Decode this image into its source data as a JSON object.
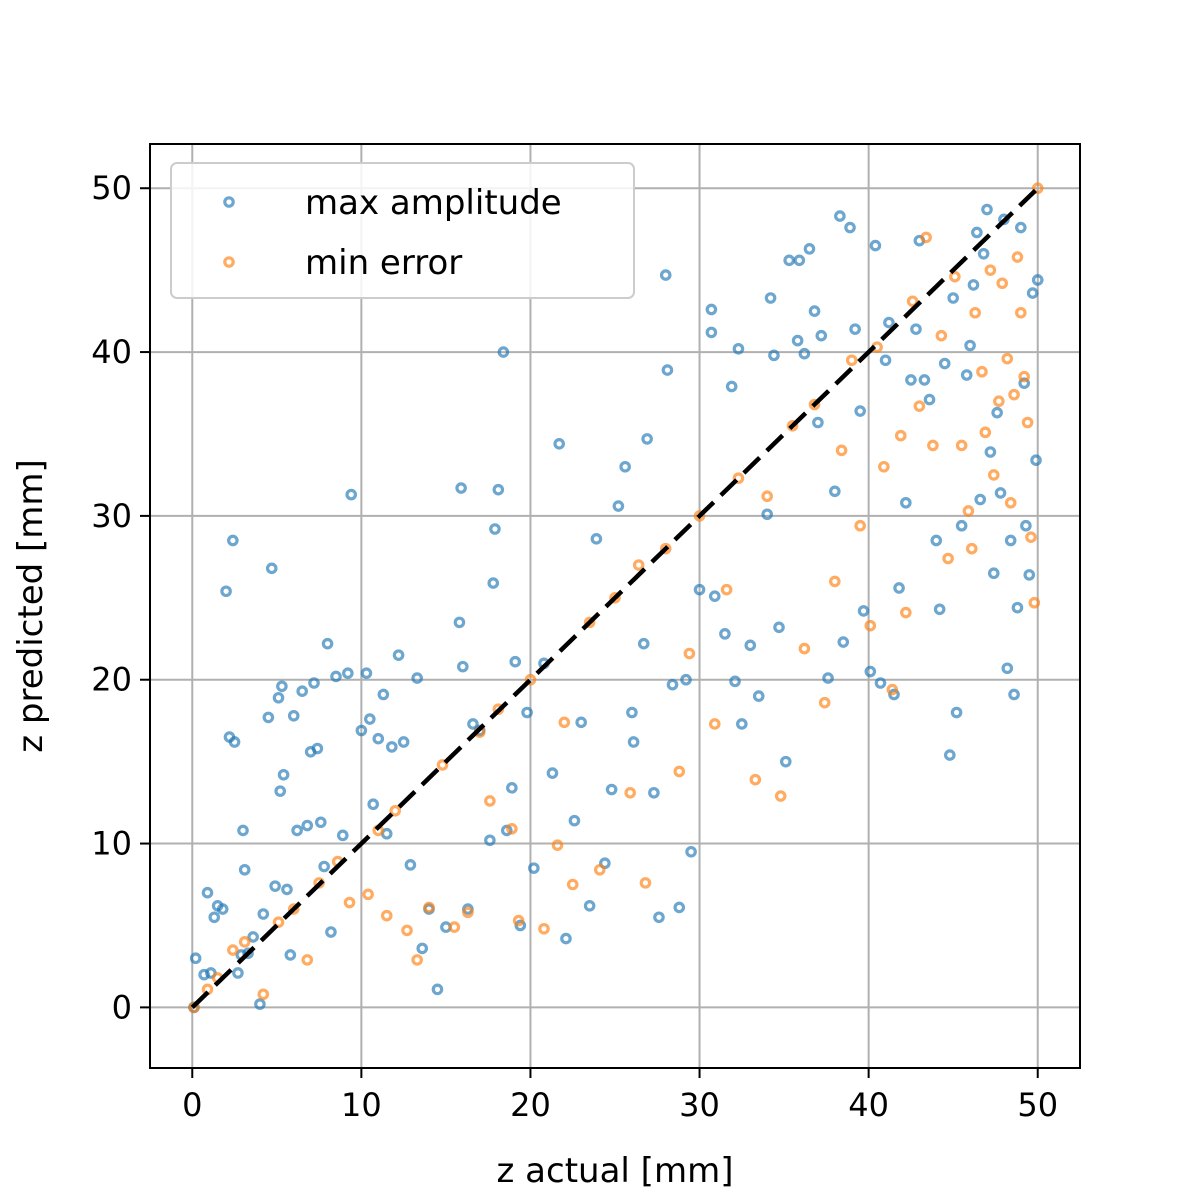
{
  "chart_data": {
    "type": "scatter",
    "xlabel": "z actual [mm]",
    "ylabel": "z predicted [mm]",
    "xlim": [
      -2.5,
      52.5
    ],
    "ylim": [
      -3.7,
      52.7
    ],
    "xticks": [
      0,
      10,
      20,
      30,
      40,
      50
    ],
    "yticks": [
      0,
      10,
      20,
      30,
      40,
      50
    ],
    "grid": true,
    "legend_position": "top-left",
    "reference_line": {
      "x": [
        0,
        50
      ],
      "y": [
        0,
        50
      ],
      "style": "dashed",
      "color": "#000000"
    },
    "series": [
      {
        "name": "max amplitude",
        "color": "#1f77b4",
        "points": [
          [
            0.1,
            0.0
          ],
          [
            0.2,
            3.0
          ],
          [
            0.7,
            2.0
          ],
          [
            0.9,
            7.0
          ],
          [
            1.1,
            2.1
          ],
          [
            1.3,
            5.5
          ],
          [
            1.5,
            6.2
          ],
          [
            1.8,
            6.0
          ],
          [
            2.0,
            25.4
          ],
          [
            2.2,
            16.5
          ],
          [
            2.4,
            28.5
          ],
          [
            2.5,
            16.2
          ],
          [
            2.7,
            2.1
          ],
          [
            2.9,
            3.2
          ],
          [
            3.0,
            10.8
          ],
          [
            3.1,
            8.4
          ],
          [
            3.3,
            3.3
          ],
          [
            3.6,
            4.3
          ],
          [
            4.0,
            0.2
          ],
          [
            4.2,
            5.7
          ],
          [
            4.5,
            17.7
          ],
          [
            4.7,
            26.8
          ],
          [
            4.9,
            7.4
          ],
          [
            5.1,
            18.9
          ],
          [
            5.2,
            13.2
          ],
          [
            5.3,
            19.6
          ],
          [
            5.4,
            14.2
          ],
          [
            5.6,
            7.2
          ],
          [
            5.8,
            3.2
          ],
          [
            6.0,
            17.8
          ],
          [
            6.2,
            10.8
          ],
          [
            6.5,
            19.3
          ],
          [
            6.8,
            11.1
          ],
          [
            7.0,
            15.6
          ],
          [
            7.2,
            19.8
          ],
          [
            7.4,
            15.8
          ],
          [
            7.6,
            11.3
          ],
          [
            7.8,
            8.6
          ],
          [
            8.0,
            22.2
          ],
          [
            8.2,
            4.6
          ],
          [
            8.5,
            20.2
          ],
          [
            8.9,
            10.5
          ],
          [
            9.2,
            20.4
          ],
          [
            9.4,
            31.3
          ],
          [
            10.0,
            16.9
          ],
          [
            10.3,
            20.4
          ],
          [
            10.5,
            17.6
          ],
          [
            10.7,
            12.4
          ],
          [
            11.0,
            16.4
          ],
          [
            11.3,
            19.1
          ],
          [
            11.5,
            10.6
          ],
          [
            11.8,
            15.9
          ],
          [
            12.2,
            21.5
          ],
          [
            12.5,
            16.2
          ],
          [
            12.9,
            8.7
          ],
          [
            13.3,
            20.1
          ],
          [
            13.6,
            3.6
          ],
          [
            14.0,
            6.0
          ],
          [
            14.5,
            1.1
          ],
          [
            15.0,
            4.9
          ],
          [
            15.8,
            23.5
          ],
          [
            15.9,
            31.7
          ],
          [
            16.0,
            20.8
          ],
          [
            16.3,
            6.0
          ],
          [
            16.6,
            17.3
          ],
          [
            17.0,
            16.9
          ],
          [
            17.6,
            10.2
          ],
          [
            17.8,
            25.9
          ],
          [
            17.9,
            29.2
          ],
          [
            18.1,
            31.6
          ],
          [
            18.4,
            40.0
          ],
          [
            18.6,
            10.8
          ],
          [
            18.9,
            13.4
          ],
          [
            19.1,
            21.1
          ],
          [
            19.4,
            5.0
          ],
          [
            19.8,
            18.0
          ],
          [
            20.2,
            8.5
          ],
          [
            20.8,
            21.0
          ],
          [
            21.3,
            14.3
          ],
          [
            21.7,
            34.4
          ],
          [
            22.1,
            4.2
          ],
          [
            22.6,
            11.4
          ],
          [
            23.0,
            17.4
          ],
          [
            23.5,
            6.2
          ],
          [
            23.9,
            28.6
          ],
          [
            24.4,
            8.8
          ],
          [
            24.8,
            13.3
          ],
          [
            25.2,
            30.6
          ],
          [
            25.6,
            33.0
          ],
          [
            26.0,
            18.0
          ],
          [
            26.1,
            16.2
          ],
          [
            26.7,
            22.2
          ],
          [
            26.9,
            34.7
          ],
          [
            27.3,
            13.1
          ],
          [
            27.6,
            5.5
          ],
          [
            28.0,
            44.7
          ],
          [
            28.1,
            38.9
          ],
          [
            28.4,
            19.7
          ],
          [
            28.8,
            6.1
          ],
          [
            29.2,
            20.0
          ],
          [
            29.5,
            9.5
          ],
          [
            30.0,
            25.5
          ],
          [
            30.7,
            41.2
          ],
          [
            30.7,
            42.6
          ],
          [
            30.9,
            25.1
          ],
          [
            31.5,
            22.8
          ],
          [
            31.9,
            37.9
          ],
          [
            32.1,
            19.9
          ],
          [
            32.3,
            40.2
          ],
          [
            32.5,
            17.3
          ],
          [
            33.0,
            22.1
          ],
          [
            33.5,
            19.0
          ],
          [
            34.0,
            30.1
          ],
          [
            34.2,
            43.3
          ],
          [
            34.4,
            39.8
          ],
          [
            34.7,
            23.2
          ],
          [
            35.1,
            15.0
          ],
          [
            35.3,
            45.6
          ],
          [
            35.8,
            40.7
          ],
          [
            35.9,
            45.6
          ],
          [
            36.2,
            39.9
          ],
          [
            36.5,
            46.3
          ],
          [
            36.8,
            42.5
          ],
          [
            37.0,
            35.7
          ],
          [
            37.2,
            41.0
          ],
          [
            37.6,
            20.1
          ],
          [
            38.0,
            31.5
          ],
          [
            38.3,
            48.3
          ],
          [
            38.5,
            22.3
          ],
          [
            38.9,
            47.6
          ],
          [
            39.2,
            41.4
          ],
          [
            39.5,
            36.4
          ],
          [
            39.7,
            24.2
          ],
          [
            40.1,
            20.5
          ],
          [
            40.4,
            46.5
          ],
          [
            40.7,
            19.8
          ],
          [
            41.0,
            39.5
          ],
          [
            41.2,
            41.8
          ],
          [
            41.5,
            19.1
          ],
          [
            41.8,
            25.6
          ],
          [
            42.2,
            30.8
          ],
          [
            42.5,
            38.3
          ],
          [
            42.8,
            41.4
          ],
          [
            43.0,
            46.8
          ],
          [
            43.3,
            38.3
          ],
          [
            43.6,
            37.1
          ],
          [
            44.0,
            28.5
          ],
          [
            44.2,
            24.3
          ],
          [
            44.5,
            39.3
          ],
          [
            44.8,
            15.4
          ],
          [
            45.0,
            43.3
          ],
          [
            45.2,
            18.0
          ],
          [
            45.5,
            29.4
          ],
          [
            45.8,
            38.6
          ],
          [
            46.0,
            40.4
          ],
          [
            46.2,
            44.1
          ],
          [
            46.4,
            47.3
          ],
          [
            46.6,
            31.0
          ],
          [
            46.8,
            46.0
          ],
          [
            47.0,
            48.7
          ],
          [
            47.2,
            33.9
          ],
          [
            47.4,
            26.5
          ],
          [
            47.6,
            36.3
          ],
          [
            47.8,
            31.4
          ],
          [
            48.0,
            48.1
          ],
          [
            48.2,
            20.7
          ],
          [
            48.4,
            28.5
          ],
          [
            48.6,
            19.1
          ],
          [
            48.8,
            24.4
          ],
          [
            49.0,
            47.6
          ],
          [
            49.2,
            38.1
          ],
          [
            49.3,
            29.4
          ],
          [
            49.5,
            26.4
          ],
          [
            49.7,
            43.6
          ],
          [
            49.9,
            33.4
          ],
          [
            50.0,
            44.4
          ]
        ]
      },
      {
        "name": "min error",
        "color": "#ff7f0e",
        "points": [
          [
            0.1,
            0.0
          ],
          [
            0.9,
            1.1
          ],
          [
            1.5,
            1.8
          ],
          [
            2.4,
            3.5
          ],
          [
            3.1,
            4.0
          ],
          [
            4.2,
            0.8
          ],
          [
            5.1,
            5.2
          ],
          [
            6.0,
            6.0
          ],
          [
            6.8,
            2.9
          ],
          [
            7.5,
            7.6
          ],
          [
            8.6,
            8.9
          ],
          [
            9.3,
            6.4
          ],
          [
            10.4,
            6.9
          ],
          [
            11.0,
            10.8
          ],
          [
            11.5,
            5.6
          ],
          [
            12.0,
            12.0
          ],
          [
            12.7,
            4.7
          ],
          [
            13.3,
            2.9
          ],
          [
            14.0,
            6.1
          ],
          [
            14.8,
            14.8
          ],
          [
            15.5,
            4.9
          ],
          [
            16.3,
            5.8
          ],
          [
            17.0,
            16.8
          ],
          [
            17.6,
            12.6
          ],
          [
            18.1,
            18.2
          ],
          [
            18.9,
            10.9
          ],
          [
            19.3,
            5.3
          ],
          [
            20.0,
            20.0
          ],
          [
            20.8,
            4.8
          ],
          [
            21.6,
            9.9
          ],
          [
            22.0,
            17.4
          ],
          [
            22.5,
            7.5
          ],
          [
            23.5,
            23.5
          ],
          [
            24.1,
            8.4
          ],
          [
            25.0,
            25.0
          ],
          [
            25.9,
            13.1
          ],
          [
            26.4,
            27.0
          ],
          [
            26.8,
            7.6
          ],
          [
            28.0,
            28.0
          ],
          [
            28.8,
            14.4
          ],
          [
            29.4,
            21.6
          ],
          [
            30.0,
            30.0
          ],
          [
            30.9,
            17.3
          ],
          [
            31.6,
            25.5
          ],
          [
            32.3,
            32.3
          ],
          [
            33.3,
            13.9
          ],
          [
            34.0,
            31.2
          ],
          [
            34.8,
            12.9
          ],
          [
            35.5,
            35.5
          ],
          [
            36.2,
            21.9
          ],
          [
            36.8,
            36.8
          ],
          [
            37.4,
            18.6
          ],
          [
            38.0,
            26.0
          ],
          [
            38.4,
            34.0
          ],
          [
            39.0,
            39.5
          ],
          [
            39.5,
            29.4
          ],
          [
            40.1,
            23.3
          ],
          [
            40.5,
            40.3
          ],
          [
            40.9,
            33.0
          ],
          [
            41.4,
            19.4
          ],
          [
            41.9,
            34.9
          ],
          [
            42.2,
            24.1
          ],
          [
            42.6,
            43.1
          ],
          [
            43.0,
            36.7
          ],
          [
            43.4,
            47.0
          ],
          [
            43.8,
            34.3
          ],
          [
            44.3,
            41.0
          ],
          [
            44.7,
            27.4
          ],
          [
            45.1,
            44.6
          ],
          [
            45.5,
            34.3
          ],
          [
            45.9,
            30.3
          ],
          [
            46.1,
            28.0
          ],
          [
            46.3,
            42.4
          ],
          [
            46.7,
            38.8
          ],
          [
            46.9,
            35.1
          ],
          [
            47.2,
            45.0
          ],
          [
            47.4,
            32.5
          ],
          [
            47.7,
            37.0
          ],
          [
            47.9,
            44.2
          ],
          [
            48.2,
            39.6
          ],
          [
            48.4,
            30.8
          ],
          [
            48.6,
            37.4
          ],
          [
            48.8,
            45.8
          ],
          [
            49.0,
            42.4
          ],
          [
            49.2,
            38.5
          ],
          [
            49.4,
            35.7
          ],
          [
            49.6,
            28.7
          ],
          [
            49.8,
            24.7
          ],
          [
            50.0,
            50.0
          ]
        ]
      }
    ]
  }
}
